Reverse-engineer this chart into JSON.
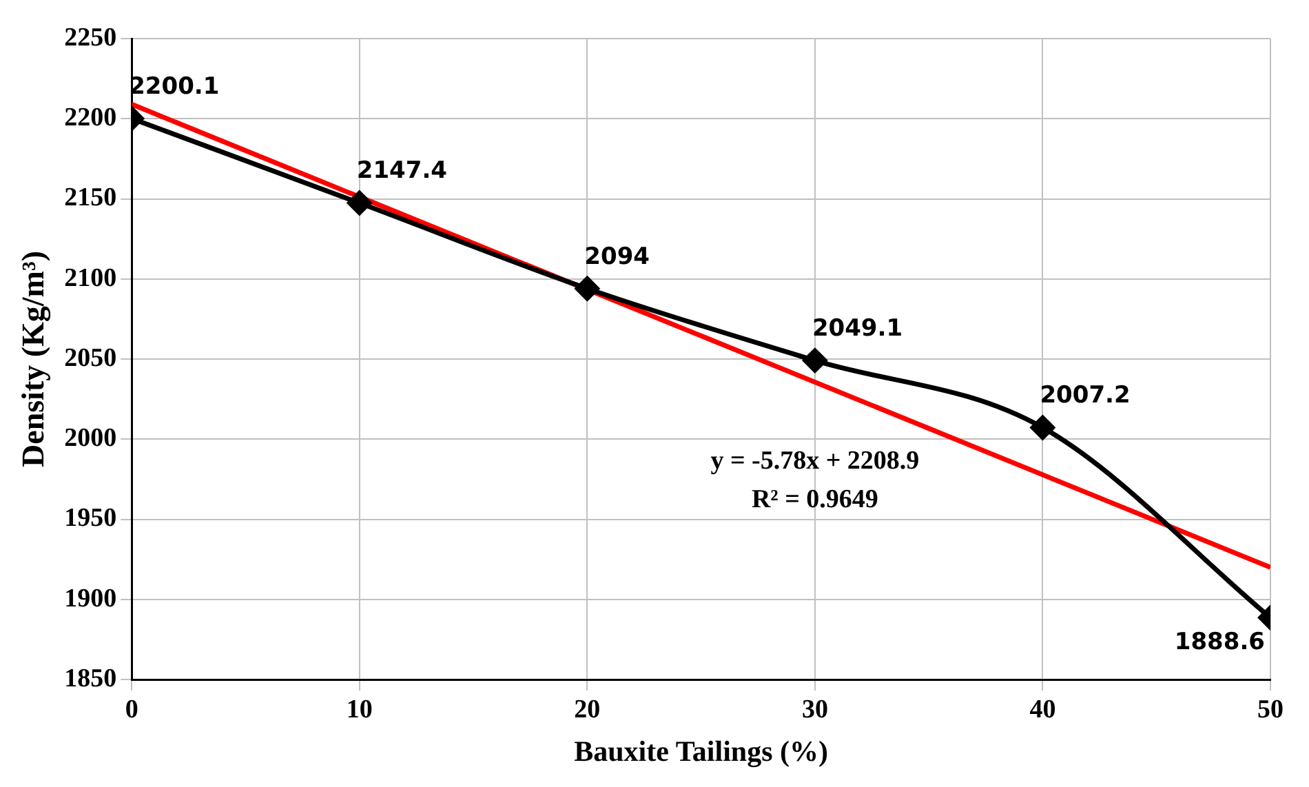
{
  "chart_data": {
    "type": "line",
    "xlabel": "Bauxite Tailings (%)",
    "ylabel": "Density (Kg/m³)",
    "x": [
      0,
      10,
      20,
      30,
      40,
      50
    ],
    "series": [
      {
        "color": "#000000",
        "values": [
          2200.1,
          2147.4,
          2094,
          2049.1,
          2007.2,
          1888.6
        ],
        "marker": "diamond",
        "value_labels": [
          "2200.1",
          "2147.4",
          "2094",
          "2049.1",
          "2007.2",
          "1888.6"
        ]
      },
      {
        "type": "line",
        "color": "#ff0000",
        "x": [
          0,
          50
        ],
        "values": [
          2209,
          1920
        ],
        "marker": "none"
      }
    ],
    "annotations": [
      "y = -5.78x + 2208.9",
      "R² = 0.9649"
    ],
    "xlim": [
      0,
      50
    ],
    "xticks": [
      0,
      10,
      20,
      30,
      40,
      50
    ],
    "ylim": [
      1850,
      2250
    ],
    "yticks": [
      1850,
      1900,
      1950,
      2000,
      2050,
      2100,
      2150,
      2200,
      2250
    ],
    "grid": true,
    "legend": false
  }
}
